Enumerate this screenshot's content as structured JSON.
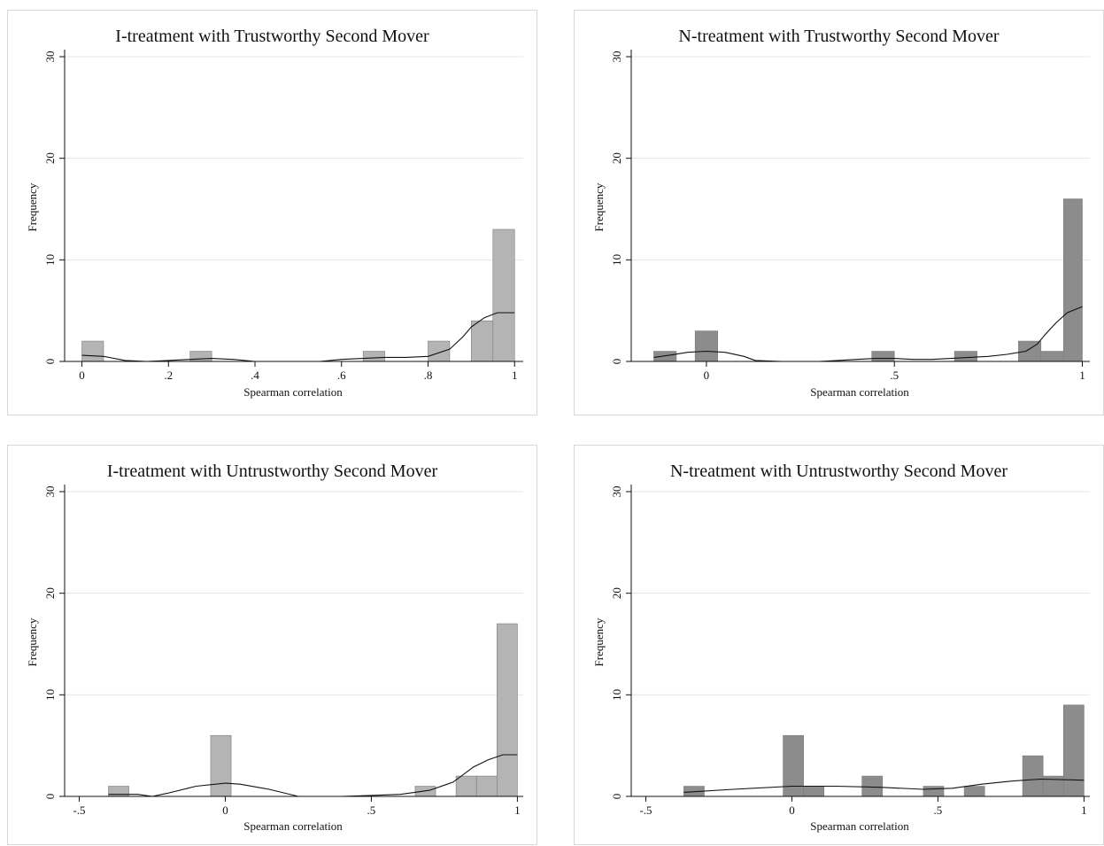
{
  "chart_data": [
    {
      "type": "bar",
      "title": "I-treatment with Trustworthy Second Mover",
      "xlabel": "Spearman correlation",
      "ylabel": "Frequency",
      "color": "#b4b4b4",
      "xlim": [
        -0.04,
        1.02
      ],
      "ylim": [
        0,
        30
      ],
      "xticks": [
        0,
        0.2,
        0.4,
        0.6,
        0.8,
        1
      ],
      "xticklabels": [
        "0",
        ".2",
        ".4",
        ".6",
        ".8",
        "1"
      ],
      "yticks": [
        0,
        10,
        20,
        30
      ],
      "yticklabels": [
        "0",
        "10",
        "20",
        "30"
      ],
      "bins": [
        {
          "x0": 0.0,
          "x1": 0.05,
          "y": 2
        },
        {
          "x0": 0.25,
          "x1": 0.3,
          "y": 1
        },
        {
          "x0": 0.65,
          "x1": 0.7,
          "y": 1
        },
        {
          "x0": 0.8,
          "x1": 0.85,
          "y": 2
        },
        {
          "x0": 0.9,
          "x1": 0.95,
          "y": 4
        },
        {
          "x0": 0.95,
          "x1": 1.0,
          "y": 13
        }
      ],
      "density": [
        [
          0,
          0.6
        ],
        [
          0.05,
          0.5
        ],
        [
          0.1,
          0.1
        ],
        [
          0.15,
          0.0
        ],
        [
          0.2,
          0.1
        ],
        [
          0.25,
          0.2
        ],
        [
          0.3,
          0.3
        ],
        [
          0.35,
          0.2
        ],
        [
          0.4,
          0.0
        ],
        [
          0.5,
          0.0
        ],
        [
          0.55,
          0.0
        ],
        [
          0.6,
          0.2
        ],
        [
          0.65,
          0.3
        ],
        [
          0.7,
          0.4
        ],
        [
          0.75,
          0.4
        ],
        [
          0.8,
          0.5
        ],
        [
          0.85,
          1.2
        ],
        [
          0.88,
          2.4
        ],
        [
          0.9,
          3.4
        ],
        [
          0.93,
          4.3
        ],
        [
          0.96,
          4.8
        ],
        [
          1.0,
          4.8
        ]
      ]
    },
    {
      "type": "bar",
      "title": "N-treatment with Trustworthy Second Mover",
      "xlabel": "Spearman correlation",
      "ylabel": "Frequency",
      "color": "#8c8c8c",
      "xlim": [
        -0.2,
        1.02
      ],
      "ylim": [
        0,
        30
      ],
      "xticks": [
        0,
        0.5,
        1
      ],
      "xticklabels": [
        "0",
        ".5",
        "1"
      ],
      "yticks": [
        0,
        10,
        20,
        30
      ],
      "yticklabels": [
        "0",
        "10",
        "20",
        "30"
      ],
      "bins": [
        {
          "x0": -0.14,
          "x1": -0.08,
          "y": 1
        },
        {
          "x0": -0.03,
          "x1": 0.03,
          "y": 3
        },
        {
          "x0": 0.44,
          "x1": 0.5,
          "y": 1
        },
        {
          "x0": 0.66,
          "x1": 0.72,
          "y": 1
        },
        {
          "x0": 0.83,
          "x1": 0.89,
          "y": 2
        },
        {
          "x0": 0.89,
          "x1": 0.95,
          "y": 1
        },
        {
          "x0": 0.95,
          "x1": 1.0,
          "y": 16
        }
      ],
      "density": [
        [
          -0.14,
          0.4
        ],
        [
          -0.1,
          0.6
        ],
        [
          -0.05,
          0.9
        ],
        [
          0.0,
          1.0
        ],
        [
          0.05,
          0.9
        ],
        [
          0.1,
          0.5
        ],
        [
          0.13,
          0.1
        ],
        [
          0.2,
          0.0
        ],
        [
          0.3,
          0.0
        ],
        [
          0.35,
          0.1
        ],
        [
          0.4,
          0.2
        ],
        [
          0.45,
          0.3
        ],
        [
          0.5,
          0.3
        ],
        [
          0.55,
          0.2
        ],
        [
          0.6,
          0.2
        ],
        [
          0.65,
          0.3
        ],
        [
          0.7,
          0.4
        ],
        [
          0.75,
          0.5
        ],
        [
          0.8,
          0.7
        ],
        [
          0.85,
          1.0
        ],
        [
          0.88,
          1.7
        ],
        [
          0.9,
          2.6
        ],
        [
          0.93,
          3.8
        ],
        [
          0.96,
          4.8
        ],
        [
          1.0,
          5.4
        ]
      ]
    },
    {
      "type": "bar",
      "title": "I-treatment with Untrustworthy Second Mover",
      "xlabel": "Spearman correlation",
      "ylabel": "Frequency",
      "color": "#b4b4b4",
      "xlim": [
        -0.55,
        1.02
      ],
      "ylim": [
        0,
        30
      ],
      "xticks": [
        -0.5,
        0,
        0.5,
        1
      ],
      "xticklabels": [
        "-.5",
        "0",
        ".5",
        "1"
      ],
      "yticks": [
        0,
        10,
        20,
        30
      ],
      "yticklabels": [
        "0",
        "10",
        "20",
        "30"
      ],
      "bins": [
        {
          "x0": -0.4,
          "x1": -0.33,
          "y": 1
        },
        {
          "x0": -0.05,
          "x1": 0.02,
          "y": 6
        },
        {
          "x0": 0.65,
          "x1": 0.72,
          "y": 1
        },
        {
          "x0": 0.79,
          "x1": 0.86,
          "y": 2
        },
        {
          "x0": 0.86,
          "x1": 0.93,
          "y": 2
        },
        {
          "x0": 0.93,
          "x1": 1.0,
          "y": 17
        }
      ],
      "density": [
        [
          -0.4,
          0.2
        ],
        [
          -0.3,
          0.2
        ],
        [
          -0.25,
          0.0
        ],
        [
          -0.2,
          0.3
        ],
        [
          -0.1,
          1.0
        ],
        [
          0.0,
          1.3
        ],
        [
          0.05,
          1.2
        ],
        [
          0.15,
          0.7
        ],
        [
          0.25,
          0.0
        ],
        [
          0.4,
          0.0
        ],
        [
          0.5,
          0.1
        ],
        [
          0.6,
          0.2
        ],
        [
          0.7,
          0.6
        ],
        [
          0.78,
          1.4
        ],
        [
          0.85,
          2.9
        ],
        [
          0.9,
          3.6
        ],
        [
          0.95,
          4.1
        ],
        [
          1.0,
          4.1
        ]
      ]
    },
    {
      "type": "bar",
      "title": "N-treatment with Untrustworthy Second Mover",
      "xlabel": "Spearman correlation",
      "ylabel": "Frequency",
      "color": "#8c8c8c",
      "xlim": [
        -0.55,
        1.02
      ],
      "ylim": [
        0,
        30
      ],
      "xticks": [
        -0.5,
        0,
        0.5,
        1
      ],
      "xticklabels": [
        "-.5",
        "0",
        ".5",
        "1"
      ],
      "yticks": [
        0,
        10,
        20,
        30
      ],
      "yticklabels": [
        "0",
        "10",
        "20",
        "30"
      ],
      "bins": [
        {
          "x0": -0.37,
          "x1": -0.3,
          "y": 1
        },
        {
          "x0": -0.03,
          "x1": 0.04,
          "y": 6
        },
        {
          "x0": 0.04,
          "x1": 0.11,
          "y": 1
        },
        {
          "x0": 0.24,
          "x1": 0.31,
          "y": 2
        },
        {
          "x0": 0.45,
          "x1": 0.52,
          "y": 1
        },
        {
          "x0": 0.59,
          "x1": 0.66,
          "y": 1
        },
        {
          "x0": 0.79,
          "x1": 0.86,
          "y": 4
        },
        {
          "x0": 0.86,
          "x1": 0.93,
          "y": 2
        },
        {
          "x0": 0.93,
          "x1": 1.0,
          "y": 9
        }
      ],
      "density": [
        [
          -0.37,
          0.4
        ],
        [
          -0.2,
          0.7
        ],
        [
          0.0,
          1.0
        ],
        [
          0.15,
          1.0
        ],
        [
          0.3,
          0.9
        ],
        [
          0.45,
          0.7
        ],
        [
          0.55,
          0.8
        ],
        [
          0.65,
          1.2
        ],
        [
          0.75,
          1.5
        ],
        [
          0.85,
          1.7
        ],
        [
          1.0,
          1.6
        ]
      ]
    }
  ]
}
